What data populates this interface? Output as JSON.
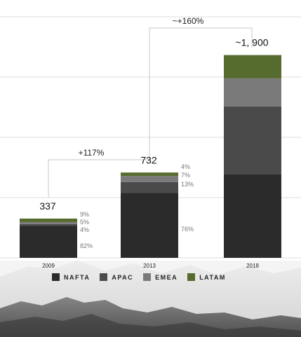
{
  "chart_data": {
    "type": "bar",
    "stacked": true,
    "categories": [
      "2009",
      "2013",
      "2018"
    ],
    "series": [
      {
        "name": "NAFTA",
        "color": "#2b2b2b",
        "share_labels": [
          "82%",
          "76%",
          ""
        ],
        "values": [
          276,
          556,
          720
        ]
      },
      {
        "name": "APAC",
        "color": "#4a4a4a",
        "share_labels": [
          "4%",
          "13%",
          ""
        ],
        "values": [
          14,
          95,
          580
        ]
      },
      {
        "name": "EMEA",
        "color": "#7a7a7a",
        "share_labels": [
          "5%",
          "7%",
          ""
        ],
        "values": [
          17,
          51,
          240
        ]
      },
      {
        "name": "LATAM",
        "color": "#566b2e",
        "share_labels": [
          "9%",
          "4%",
          ""
        ],
        "values": [
          30,
          30,
          200
        ]
      }
    ],
    "totals": [
      "337",
      "732",
      "~1, 900"
    ],
    "growth_labels": [
      "+117%",
      "~+160%"
    ],
    "ylim": [
      0,
      1900
    ],
    "grid": true,
    "legend_position": "bottom"
  }
}
